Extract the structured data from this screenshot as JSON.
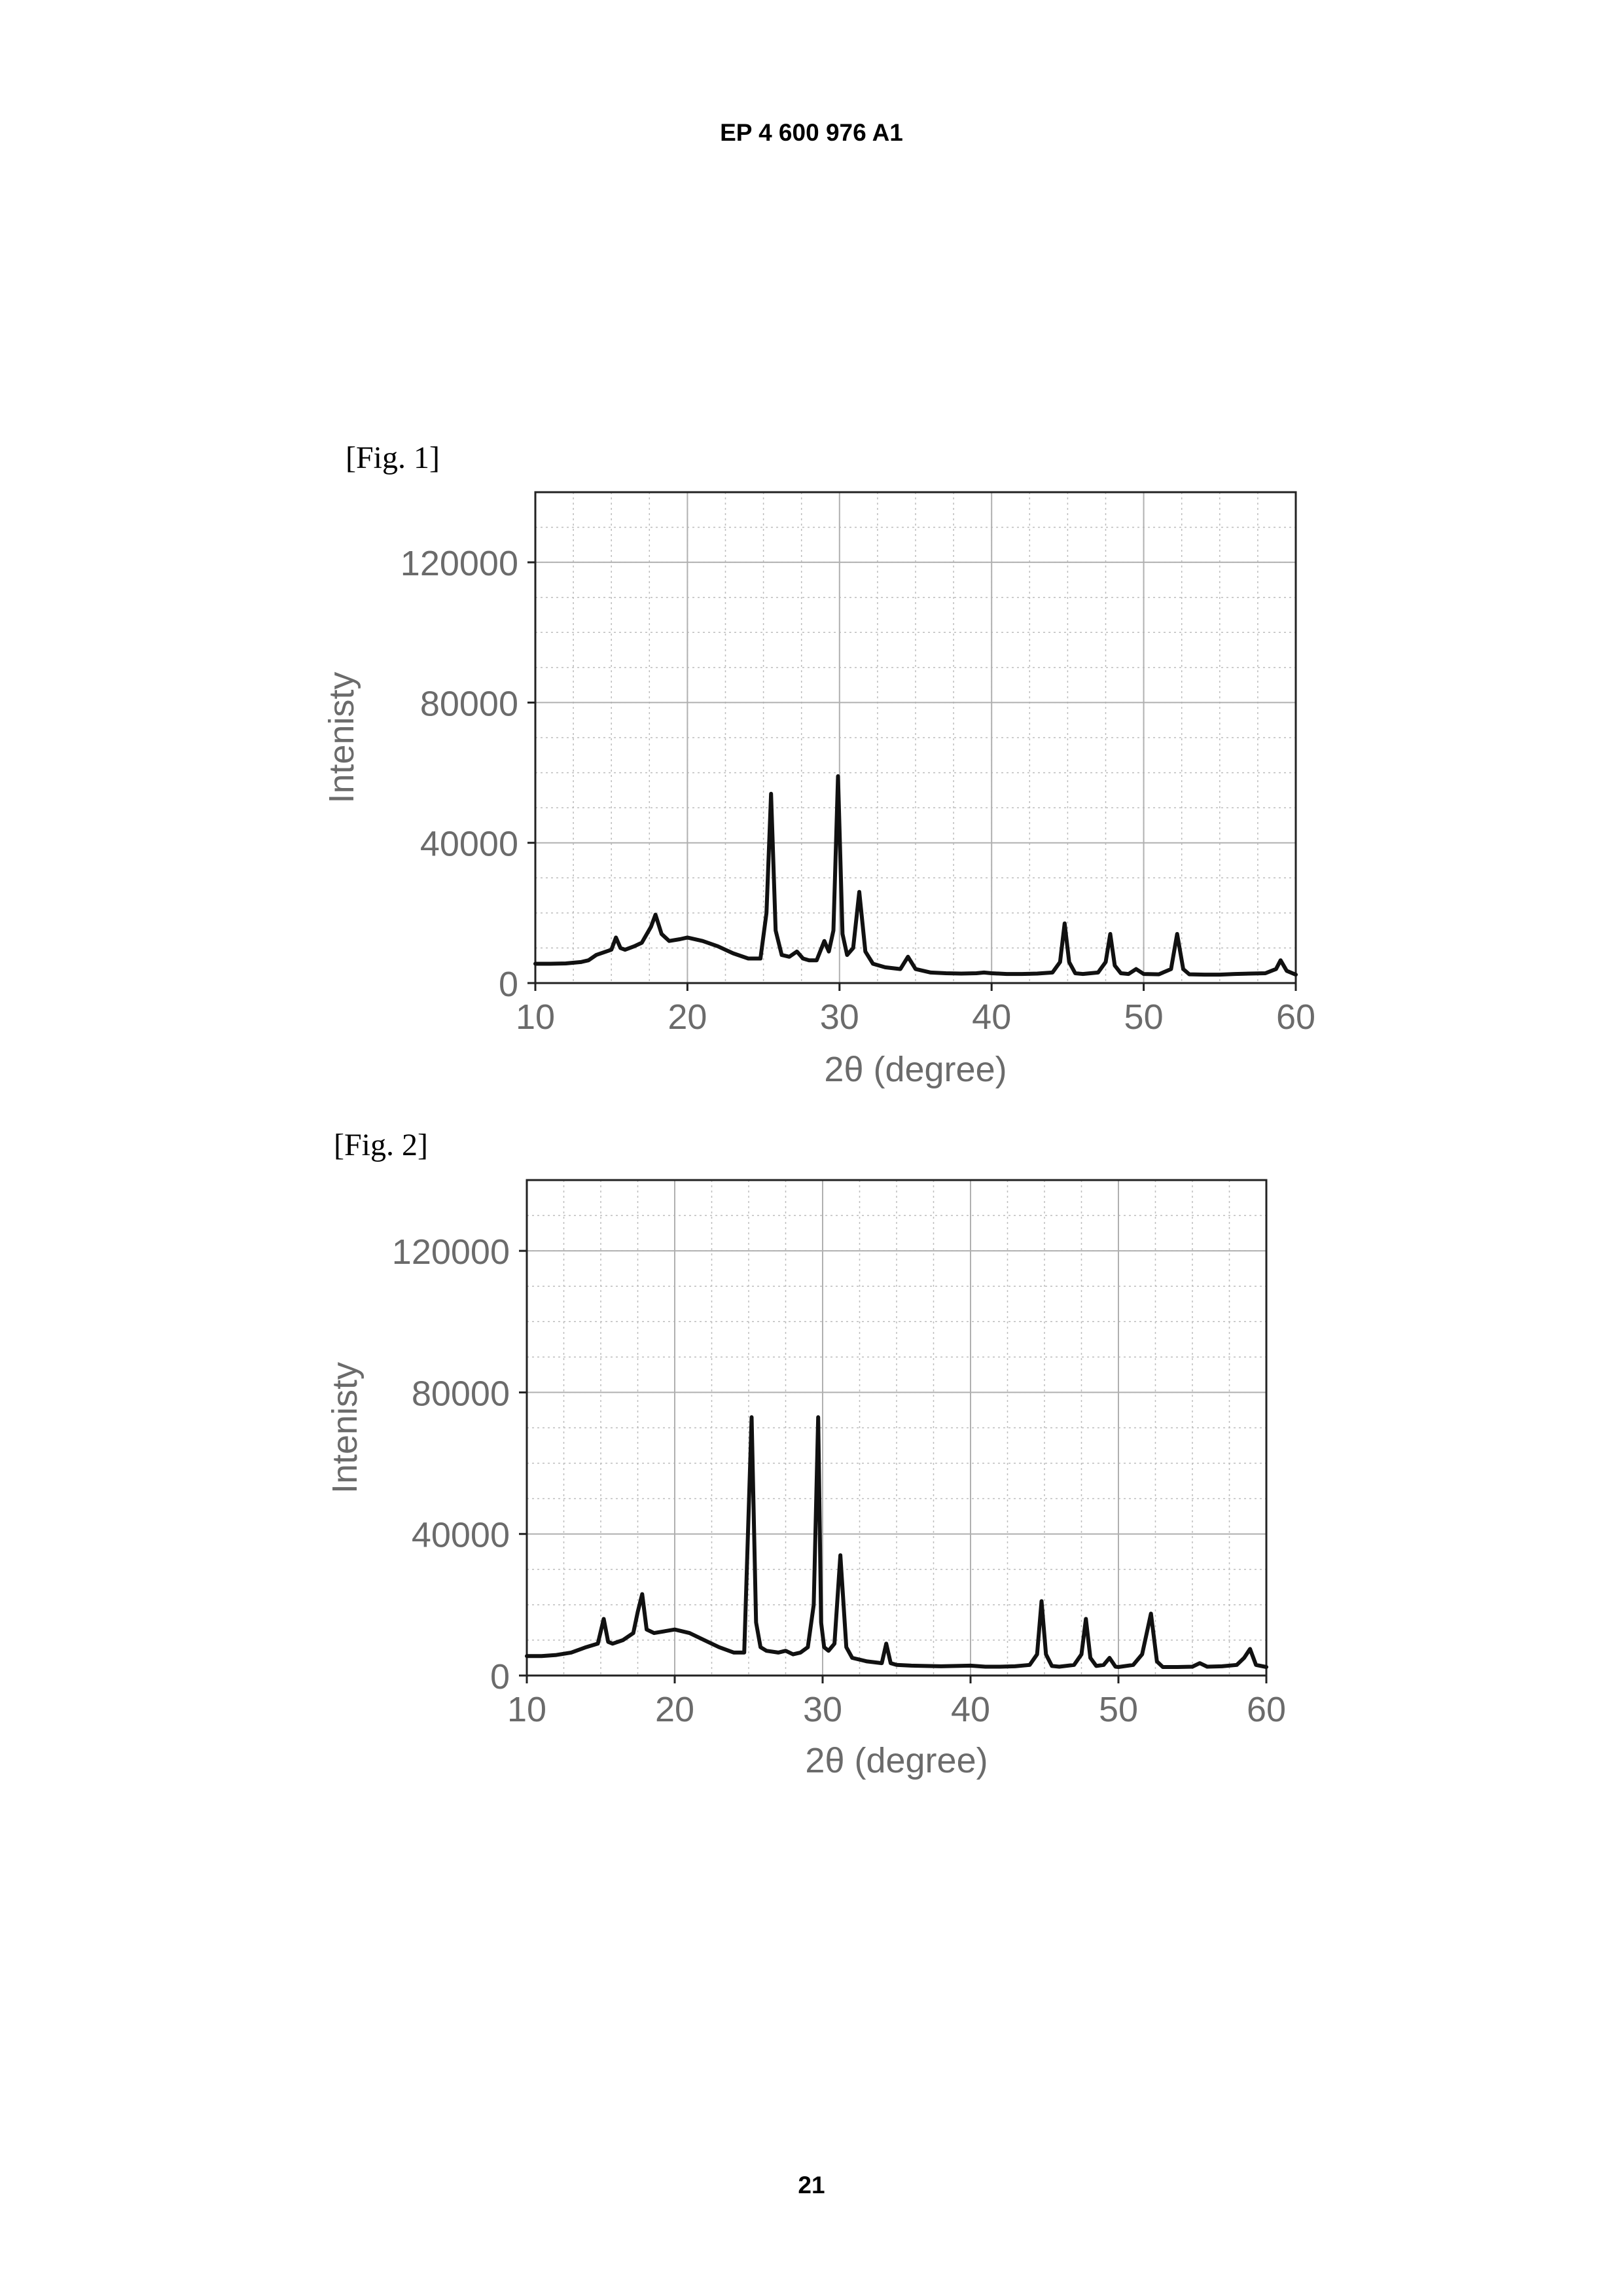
{
  "header": {
    "doc_number": "EP 4 600 976 A1"
  },
  "figures": [
    {
      "label": "[Fig. 1]"
    },
    {
      "label": "[Fig. 2]"
    }
  ],
  "footer": {
    "page_number": "21"
  },
  "chart_data": [
    {
      "type": "line",
      "xlabel": "2θ (degree)",
      "ylabel": "Intenisty",
      "xlim": [
        10,
        60
      ],
      "ylim": [
        0,
        140000
      ],
      "xticks": [
        10,
        20,
        30,
        40,
        50,
        60
      ],
      "yticks": [
        0,
        40000,
        80000,
        120000
      ],
      "grid": true,
      "series": [
        {
          "x": [
            10,
            11,
            12,
            13,
            13.5,
            14,
            15,
            15.3,
            15.6,
            15.9,
            16.5,
            17,
            17.6,
            17.9,
            18.3,
            18.8,
            19.5,
            20,
            21,
            22,
            23,
            24,
            24.8,
            25.2,
            25.5,
            25.8,
            26.2,
            26.7,
            27.2,
            27.6,
            28,
            28.5,
            29,
            29.3,
            29.6,
            29.9,
            30.2,
            30.5,
            30.9,
            31.3,
            31.7,
            32.2,
            33,
            34,
            34.5,
            35,
            36,
            37,
            38,
            39,
            39.5,
            40,
            41,
            42,
            43,
            44,
            44.5,
            44.8,
            45.1,
            45.5,
            46,
            47,
            47.5,
            47.8,
            48.1,
            48.5,
            49,
            49.5,
            50,
            51,
            51.8,
            52.2,
            52.6,
            53,
            54,
            55,
            56,
            57,
            58,
            58.7,
            59,
            59.4,
            60
          ],
          "y": [
            5500,
            5500,
            5600,
            6000,
            6500,
            8000,
            9500,
            13000,
            10000,
            9500,
            10500,
            11500,
            16000,
            19500,
            14000,
            12000,
            12500,
            13000,
            12000,
            10500,
            8500,
            7000,
            7000,
            20000,
            54000,
            15000,
            8000,
            7500,
            9000,
            7000,
            6500,
            6500,
            12000,
            9000,
            15000,
            59000,
            14000,
            8000,
            10000,
            26000,
            9000,
            5500,
            4500,
            4000,
            7500,
            4000,
            3000,
            2800,
            2700,
            2800,
            3000,
            2800,
            2600,
            2600,
            2700,
            3000,
            6000,
            17000,
            6000,
            2800,
            2600,
            3000,
            6000,
            14000,
            5000,
            2800,
            2600,
            4000,
            2600,
            2500,
            4000,
            14000,
            4000,
            2500,
            2400,
            2400,
            2600,
            2700,
            2800,
            4000,
            6500,
            3500,
            2400
          ]
        }
      ]
    },
    {
      "type": "line",
      "xlabel": "2θ (degree)",
      "ylabel": "Intenisty",
      "xlim": [
        10,
        60
      ],
      "ylim": [
        0,
        140000
      ],
      "xticks": [
        10,
        20,
        30,
        40,
        50,
        60
      ],
      "yticks": [
        0,
        40000,
        80000,
        120000
      ],
      "grid": true,
      "series": [
        {
          "x": [
            10,
            11,
            12,
            13,
            14,
            14.8,
            15.2,
            15.5,
            15.8,
            16.5,
            17.2,
            17.5,
            17.8,
            18.1,
            18.6,
            19.3,
            20,
            21,
            22,
            23,
            24,
            24.7,
            25.2,
            25.5,
            25.8,
            26.2,
            27,
            27.5,
            28,
            28.5,
            29,
            29.4,
            29.7,
            29.9,
            30.1,
            30.4,
            30.8,
            31.2,
            31.6,
            32,
            33,
            34,
            34.3,
            34.6,
            35,
            36,
            38,
            40,
            41,
            42,
            43,
            44,
            44.5,
            44.8,
            45.1,
            45.5,
            46,
            47,
            47.5,
            47.8,
            48.1,
            48.5,
            49,
            49.4,
            49.8,
            50,
            51,
            51.6,
            52.2,
            52.6,
            53,
            54,
            55,
            55.5,
            56,
            57,
            58,
            58.5,
            58.9,
            59.3,
            60
          ],
          "y": [
            5500,
            5500,
            5800,
            6500,
            8000,
            9000,
            16000,
            9500,
            9000,
            10000,
            12000,
            18000,
            23000,
            13000,
            12000,
            12500,
            13000,
            12000,
            10000,
            8000,
            6500,
            6500,
            73000,
            15000,
            8000,
            7000,
            6500,
            7000,
            6000,
            6500,
            8000,
            20000,
            73000,
            15000,
            8000,
            7000,
            9000,
            34000,
            8000,
            5000,
            4000,
            3500,
            9000,
            3500,
            3000,
            2800,
            2600,
            2800,
            2500,
            2500,
            2600,
            3000,
            6000,
            21000,
            6000,
            2700,
            2500,
            3000,
            6000,
            16000,
            5000,
            2700,
            3000,
            5000,
            2500,
            2400,
            3000,
            6000,
            17500,
            4000,
            2400,
            2400,
            2500,
            3500,
            2500,
            2600,
            3000,
            5000,
            7500,
            3000,
            2400
          ]
        }
      ]
    }
  ]
}
